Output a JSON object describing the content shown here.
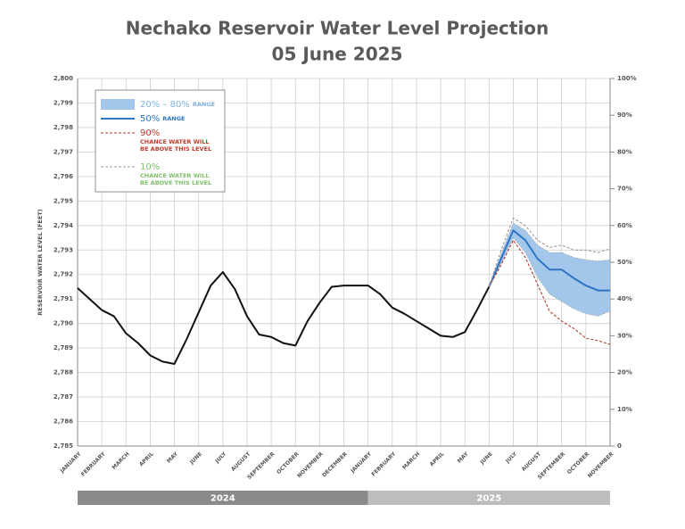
{
  "chart_data": {
    "type": "line",
    "title": "Nechako Reservoir Water Level Projection",
    "subtitle": "05 June 2025",
    "y_label": "RESERVOIR WATER LEVEL (FEET)",
    "categories": [
      "JANUARY",
      null,
      "FEBRUARY",
      null,
      "MARCH",
      null,
      "APRIL",
      null,
      "MAY",
      null,
      "JUNE",
      null,
      "JULY",
      null,
      "AUGUST",
      null,
      "SEPTEMBER",
      null,
      "OCTOBER",
      null,
      "NOVEMBER",
      null,
      "DECEMBER",
      null,
      "JANUARY",
      null,
      "FEBRUARY",
      null,
      "MARCH",
      null,
      "APRIL",
      null,
      "MAY",
      null,
      "JUNE",
      null,
      "JULY",
      null,
      "AUGUST",
      null,
      "SEPTEMBER",
      null,
      "OCTOBER",
      null,
      "NOVEMBER"
    ],
    "years": [
      {
        "label": "2024",
        "color": "#8a8a8a"
      },
      {
        "label": "2025",
        "color": "#bdbdbd"
      }
    ],
    "ylim": [
      2785,
      2800
    ],
    "yticks": [
      {
        "value": 2785,
        "label": "2,785"
      },
      {
        "value": 2786,
        "label": "2,786"
      },
      {
        "value": 2787,
        "label": "2,787"
      },
      {
        "value": 2788,
        "label": "2,788"
      },
      {
        "value": 2789,
        "label": "2,789"
      },
      {
        "value": 2790,
        "label": "2,790"
      },
      {
        "value": 2791,
        "label": "2,791"
      },
      {
        "value": 2792,
        "label": "2,792"
      },
      {
        "value": 2793,
        "label": "2,793"
      },
      {
        "value": 2794,
        "label": "2,794"
      },
      {
        "value": 2795,
        "label": "2,795"
      },
      {
        "value": 2796,
        "label": "2,796"
      },
      {
        "value": 2797,
        "label": "2,797"
      },
      {
        "value": 2798,
        "label": "2,798"
      },
      {
        "value": 2799,
        "label": "2,799"
      },
      {
        "value": 2800,
        "label": "2,800"
      }
    ],
    "y2lim": [
      0,
      100
    ],
    "y2ticks": [
      0,
      {
        "value": 10,
        "label": "10%"
      },
      {
        "value": 20,
        "label": "20%"
      },
      {
        "value": 30,
        "label": "30%"
      },
      {
        "value": 40,
        "label": "40%"
      },
      {
        "value": 50,
        "label": "50%"
      },
      {
        "value": 60,
        "label": "60%"
      },
      {
        "value": 70,
        "label": "70%"
      },
      {
        "value": 80,
        "label": "80%"
      },
      {
        "value": 90,
        "label": "90%"
      },
      {
        "value": 100,
        "label": "100%"
      }
    ],
    "grid": true,
    "legend": "upper left",
    "series": [
      {
        "color": "#111111",
        "values": [
          2791.45,
          2791.0,
          2790.55,
          2790.3,
          2789.6,
          2789.2,
          2788.7,
          2788.45,
          2788.35,
          2789.35,
          2790.45,
          2791.55,
          2792.1,
          2791.4,
          2790.3,
          2789.55,
          2789.45,
          2789.2,
          2789.1,
          2790.1,
          2790.85,
          2791.5,
          2791.55,
          2791.55,
          2791.55,
          2791.2,
          2790.65,
          2790.4,
          2790.1,
          2789.8,
          2789.5,
          2789.45,
          2789.65,
          2790.55,
          2791.5,
          null,
          null,
          null,
          null,
          null,
          null,
          null,
          null,
          null,
          null
        ]
      },
      {
        "name": "20% – 80%",
        "name_detail": "RANGE",
        "color": "#a3c7ea",
        "label_color": "#7fb0e0",
        "low": [
          null,
          null,
          null,
          null,
          null,
          null,
          null,
          null,
          null,
          null,
          null,
          null,
          null,
          null,
          null,
          null,
          null,
          null,
          null,
          null,
          null,
          null,
          null,
          null,
          null,
          null,
          null,
          null,
          null,
          null,
          null,
          null,
          null,
          null,
          2791.5,
          2792.45,
          2793.5,
          2792.9,
          2791.9,
          2791.2,
          2790.9,
          2790.6,
          2790.4,
          2790.3,
          2790.5
        ],
        "high": [
          null,
          null,
          null,
          null,
          null,
          null,
          null,
          null,
          null,
          null,
          null,
          null,
          null,
          null,
          null,
          null,
          null,
          null,
          null,
          null,
          null,
          null,
          null,
          null,
          null,
          null,
          null,
          null,
          null,
          null,
          null,
          null,
          null,
          null,
          2791.5,
          2792.85,
          2794.1,
          2793.8,
          2793.2,
          2792.9,
          2792.9,
          2792.7,
          2792.6,
          2792.55,
          2792.6
        ]
      },
      {
        "name": "50%",
        "name_detail": "RANGE",
        "color": "#2e75c5",
        "label_color": "#2e75c5",
        "values": [
          null,
          null,
          null,
          null,
          null,
          null,
          null,
          null,
          null,
          null,
          null,
          null,
          null,
          null,
          null,
          null,
          null,
          null,
          null,
          null,
          null,
          null,
          null,
          null,
          null,
          null,
          null,
          null,
          null,
          null,
          null,
          null,
          null,
          null,
          2791.5,
          2792.65,
          2793.8,
          2793.4,
          2792.65,
          2792.2,
          2792.2,
          2791.85,
          2791.55,
          2791.35,
          2791.35
        ]
      },
      {
        "name": "90%",
        "name_detail": [
          "CHANCE WATER WILL",
          "BE ABOVE THIS LEVEL"
        ],
        "color": "#b03a2e",
        "label_color": "#c0392b",
        "dash": true,
        "values": [
          null,
          null,
          null,
          null,
          null,
          null,
          null,
          null,
          null,
          null,
          null,
          null,
          null,
          null,
          null,
          null,
          null,
          null,
          null,
          null,
          null,
          null,
          null,
          null,
          null,
          null,
          null,
          null,
          null,
          null,
          null,
          null,
          null,
          null,
          2791.5,
          2792.4,
          2793.4,
          2792.7,
          2791.6,
          2790.5,
          2790.1,
          2789.8,
          2789.4,
          2789.3,
          2789.15
        ]
      },
      {
        "name": "10%",
        "name_detail": [
          "CHANCE WATER WILL",
          "BE ABOVE THIS LEVEL"
        ],
        "color": "#9a9a9a",
        "label_color": "#7fbf6a",
        "dash": true,
        "values": [
          null,
          null,
          null,
          null,
          null,
          null,
          null,
          null,
          null,
          null,
          null,
          null,
          null,
          null,
          null,
          null,
          null,
          null,
          null,
          null,
          null,
          null,
          null,
          null,
          null,
          null,
          null,
          null,
          null,
          null,
          null,
          null,
          null,
          null,
          2791.5,
          2793.0,
          2794.3,
          2794.0,
          2793.4,
          2793.1,
          2793.2,
          2793.0,
          2793.0,
          2792.9,
          2793.05
        ]
      }
    ]
  }
}
